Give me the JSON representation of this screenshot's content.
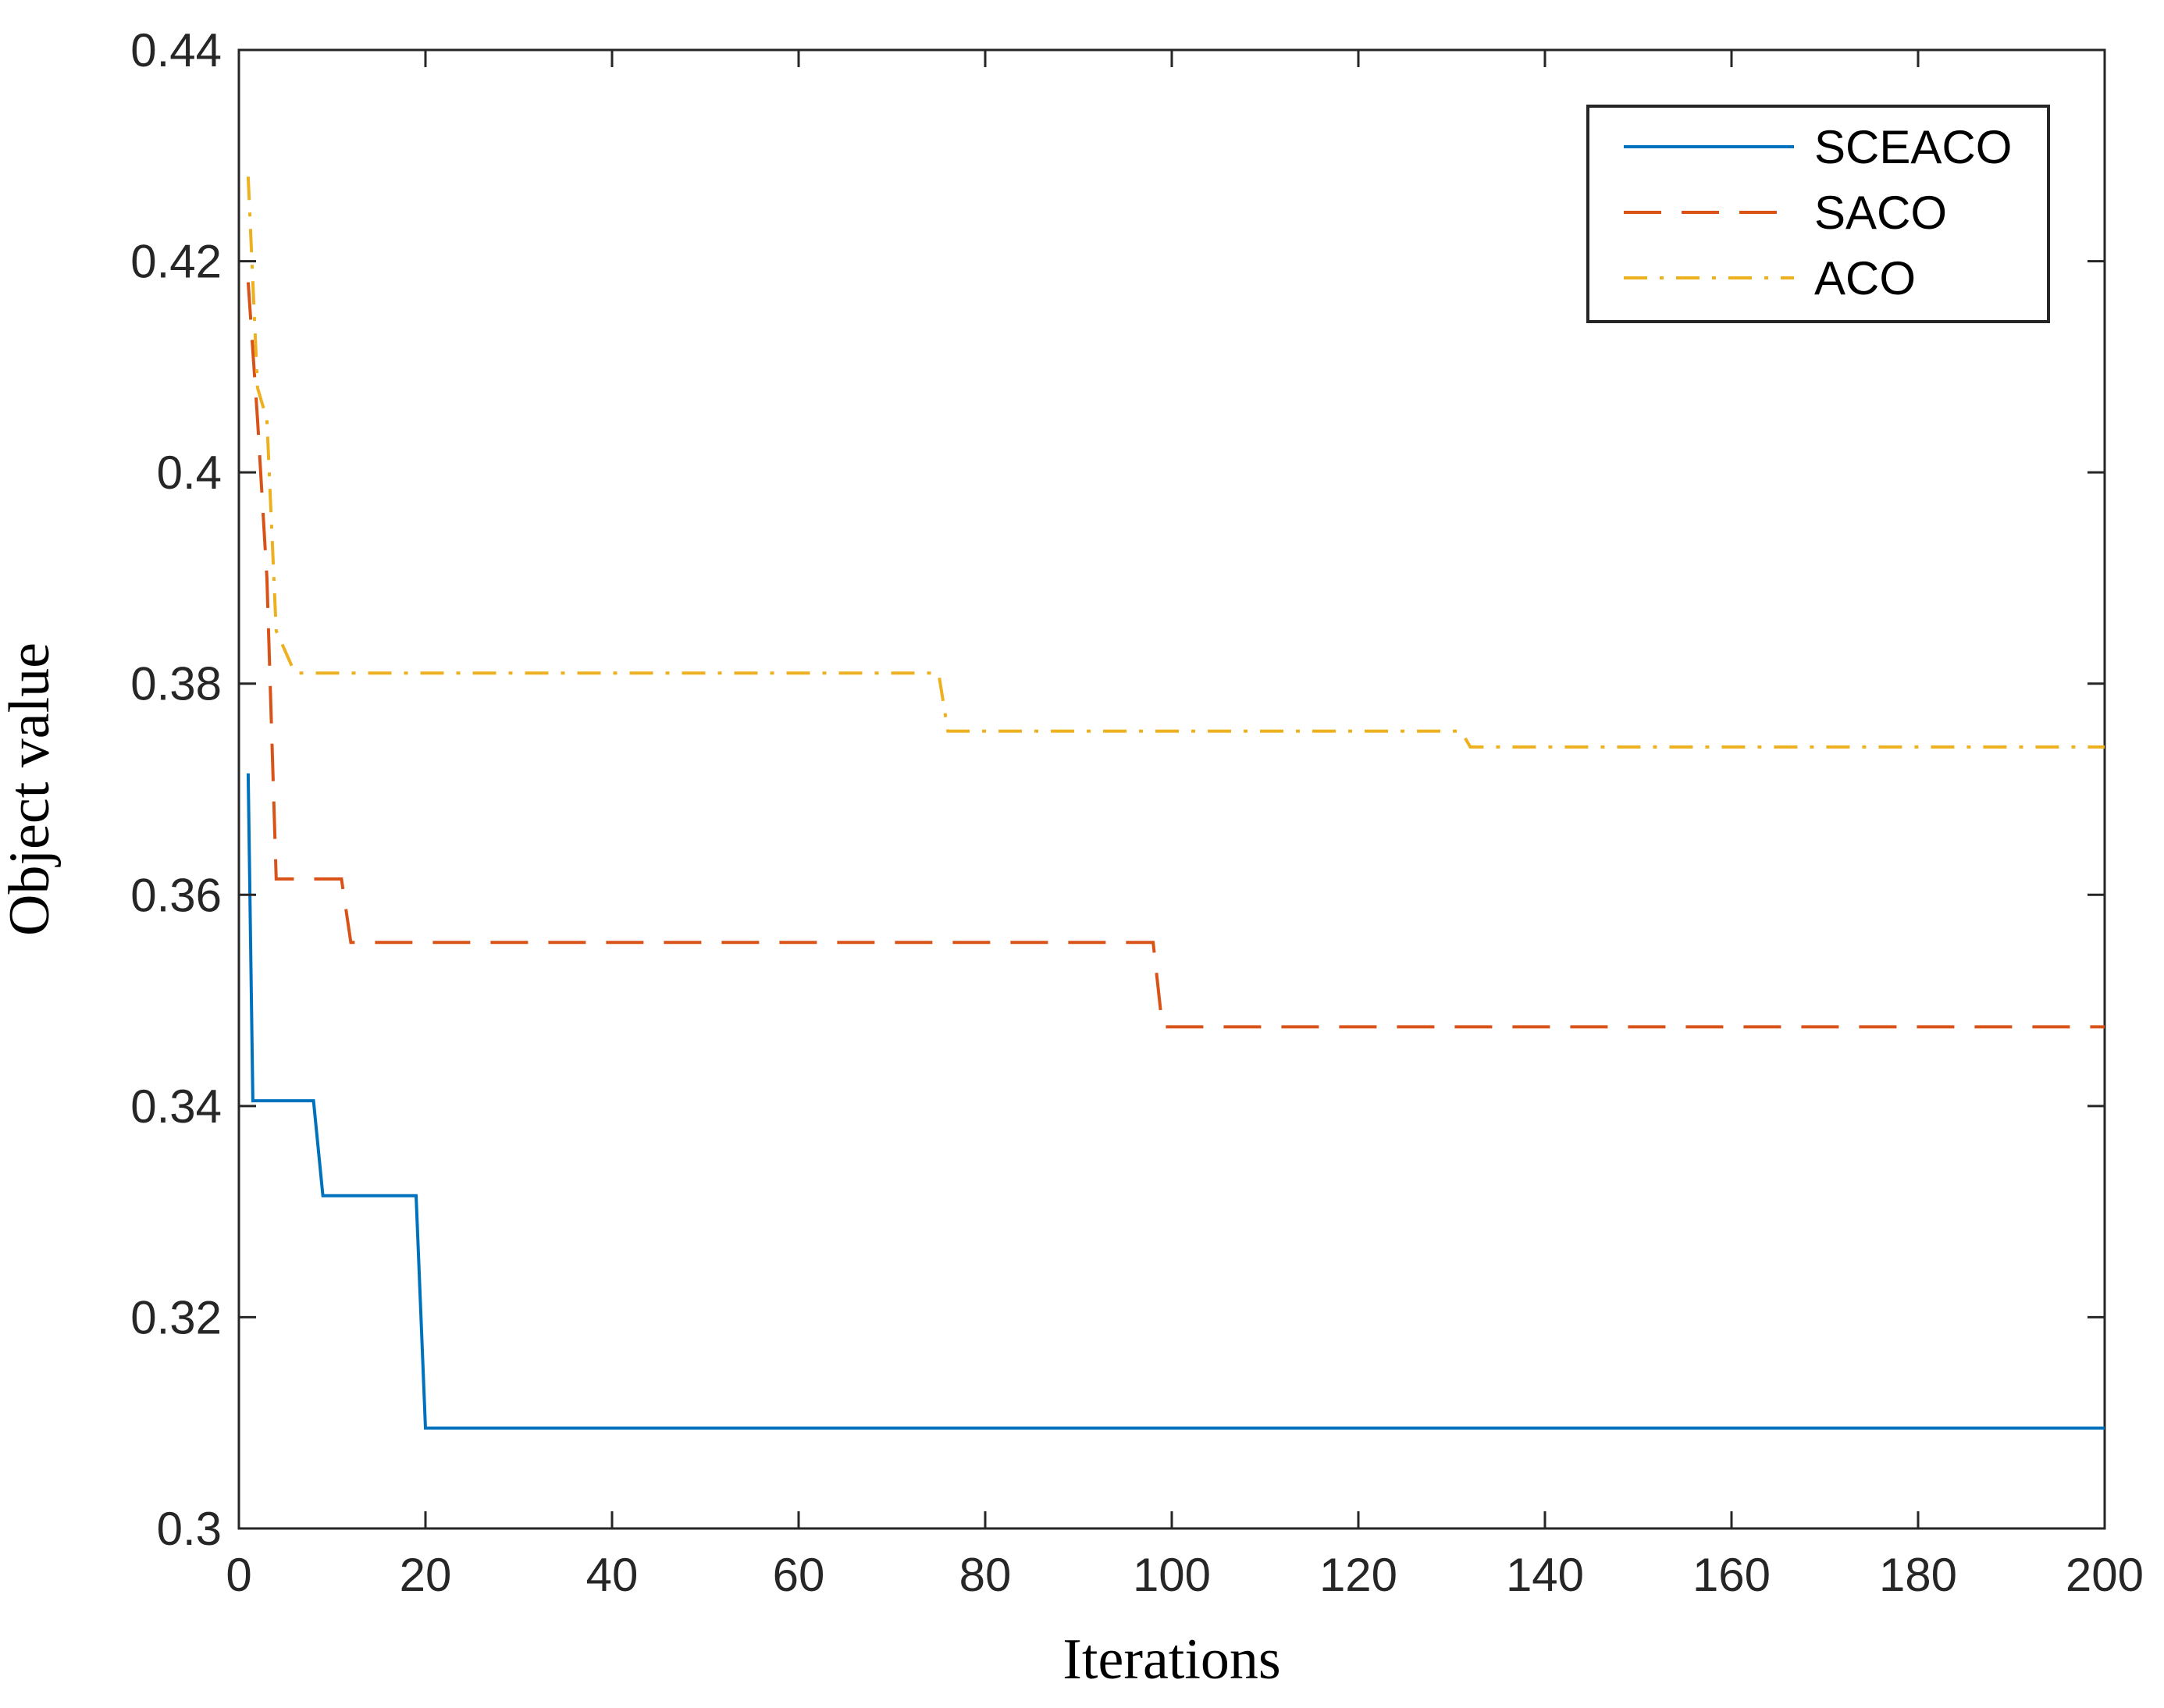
{
  "chart_data": {
    "type": "line",
    "title": "",
    "xlabel": "Iterations",
    "ylabel": "Object value",
    "xlim": [
      0,
      200
    ],
    "ylim": [
      0.3,
      0.44
    ],
    "xticks": [
      0,
      20,
      40,
      60,
      80,
      100,
      120,
      140,
      160,
      180,
      200
    ],
    "xtick_labels": [
      "0",
      "20",
      "40",
      "60",
      "80",
      "100",
      "120",
      "140",
      "160",
      "180",
      "200"
    ],
    "yticks": [
      0.3,
      0.32,
      0.34,
      0.36,
      0.38,
      0.4,
      0.42,
      0.44
    ],
    "ytick_labels": [
      "0.3",
      "0.32",
      "0.34",
      "0.36",
      "0.38",
      "0.4",
      "0.42",
      "0.44"
    ],
    "grid": false,
    "legend_position": "top-right",
    "series": [
      {
        "name": "SCEACO",
        "color": "#0072BD",
        "style": "solid",
        "x": [
          1,
          1.5,
          2,
          8,
          9,
          19,
          20,
          200
        ],
        "y": [
          0.3715,
          0.3405,
          0.3405,
          0.3405,
          0.3315,
          0.3315,
          0.3095,
          0.3095
        ]
      },
      {
        "name": "SACO",
        "color": "#D95319",
        "style": "dashed",
        "x": [
          1,
          2,
          3,
          4,
          11,
          12,
          98,
          99,
          200
        ],
        "y": [
          0.418,
          0.405,
          0.39,
          0.3615,
          0.3615,
          0.3555,
          0.3555,
          0.3475,
          0.3475
        ]
      },
      {
        "name": "ACO",
        "color": "#EDB120",
        "style": "dashdot",
        "x": [
          1,
          2,
          3,
          4,
          5,
          6,
          75,
          76,
          131,
          132,
          200
        ],
        "y": [
          0.428,
          0.408,
          0.405,
          0.385,
          0.383,
          0.381,
          0.381,
          0.3755,
          0.3755,
          0.374,
          0.374
        ]
      }
    ]
  }
}
